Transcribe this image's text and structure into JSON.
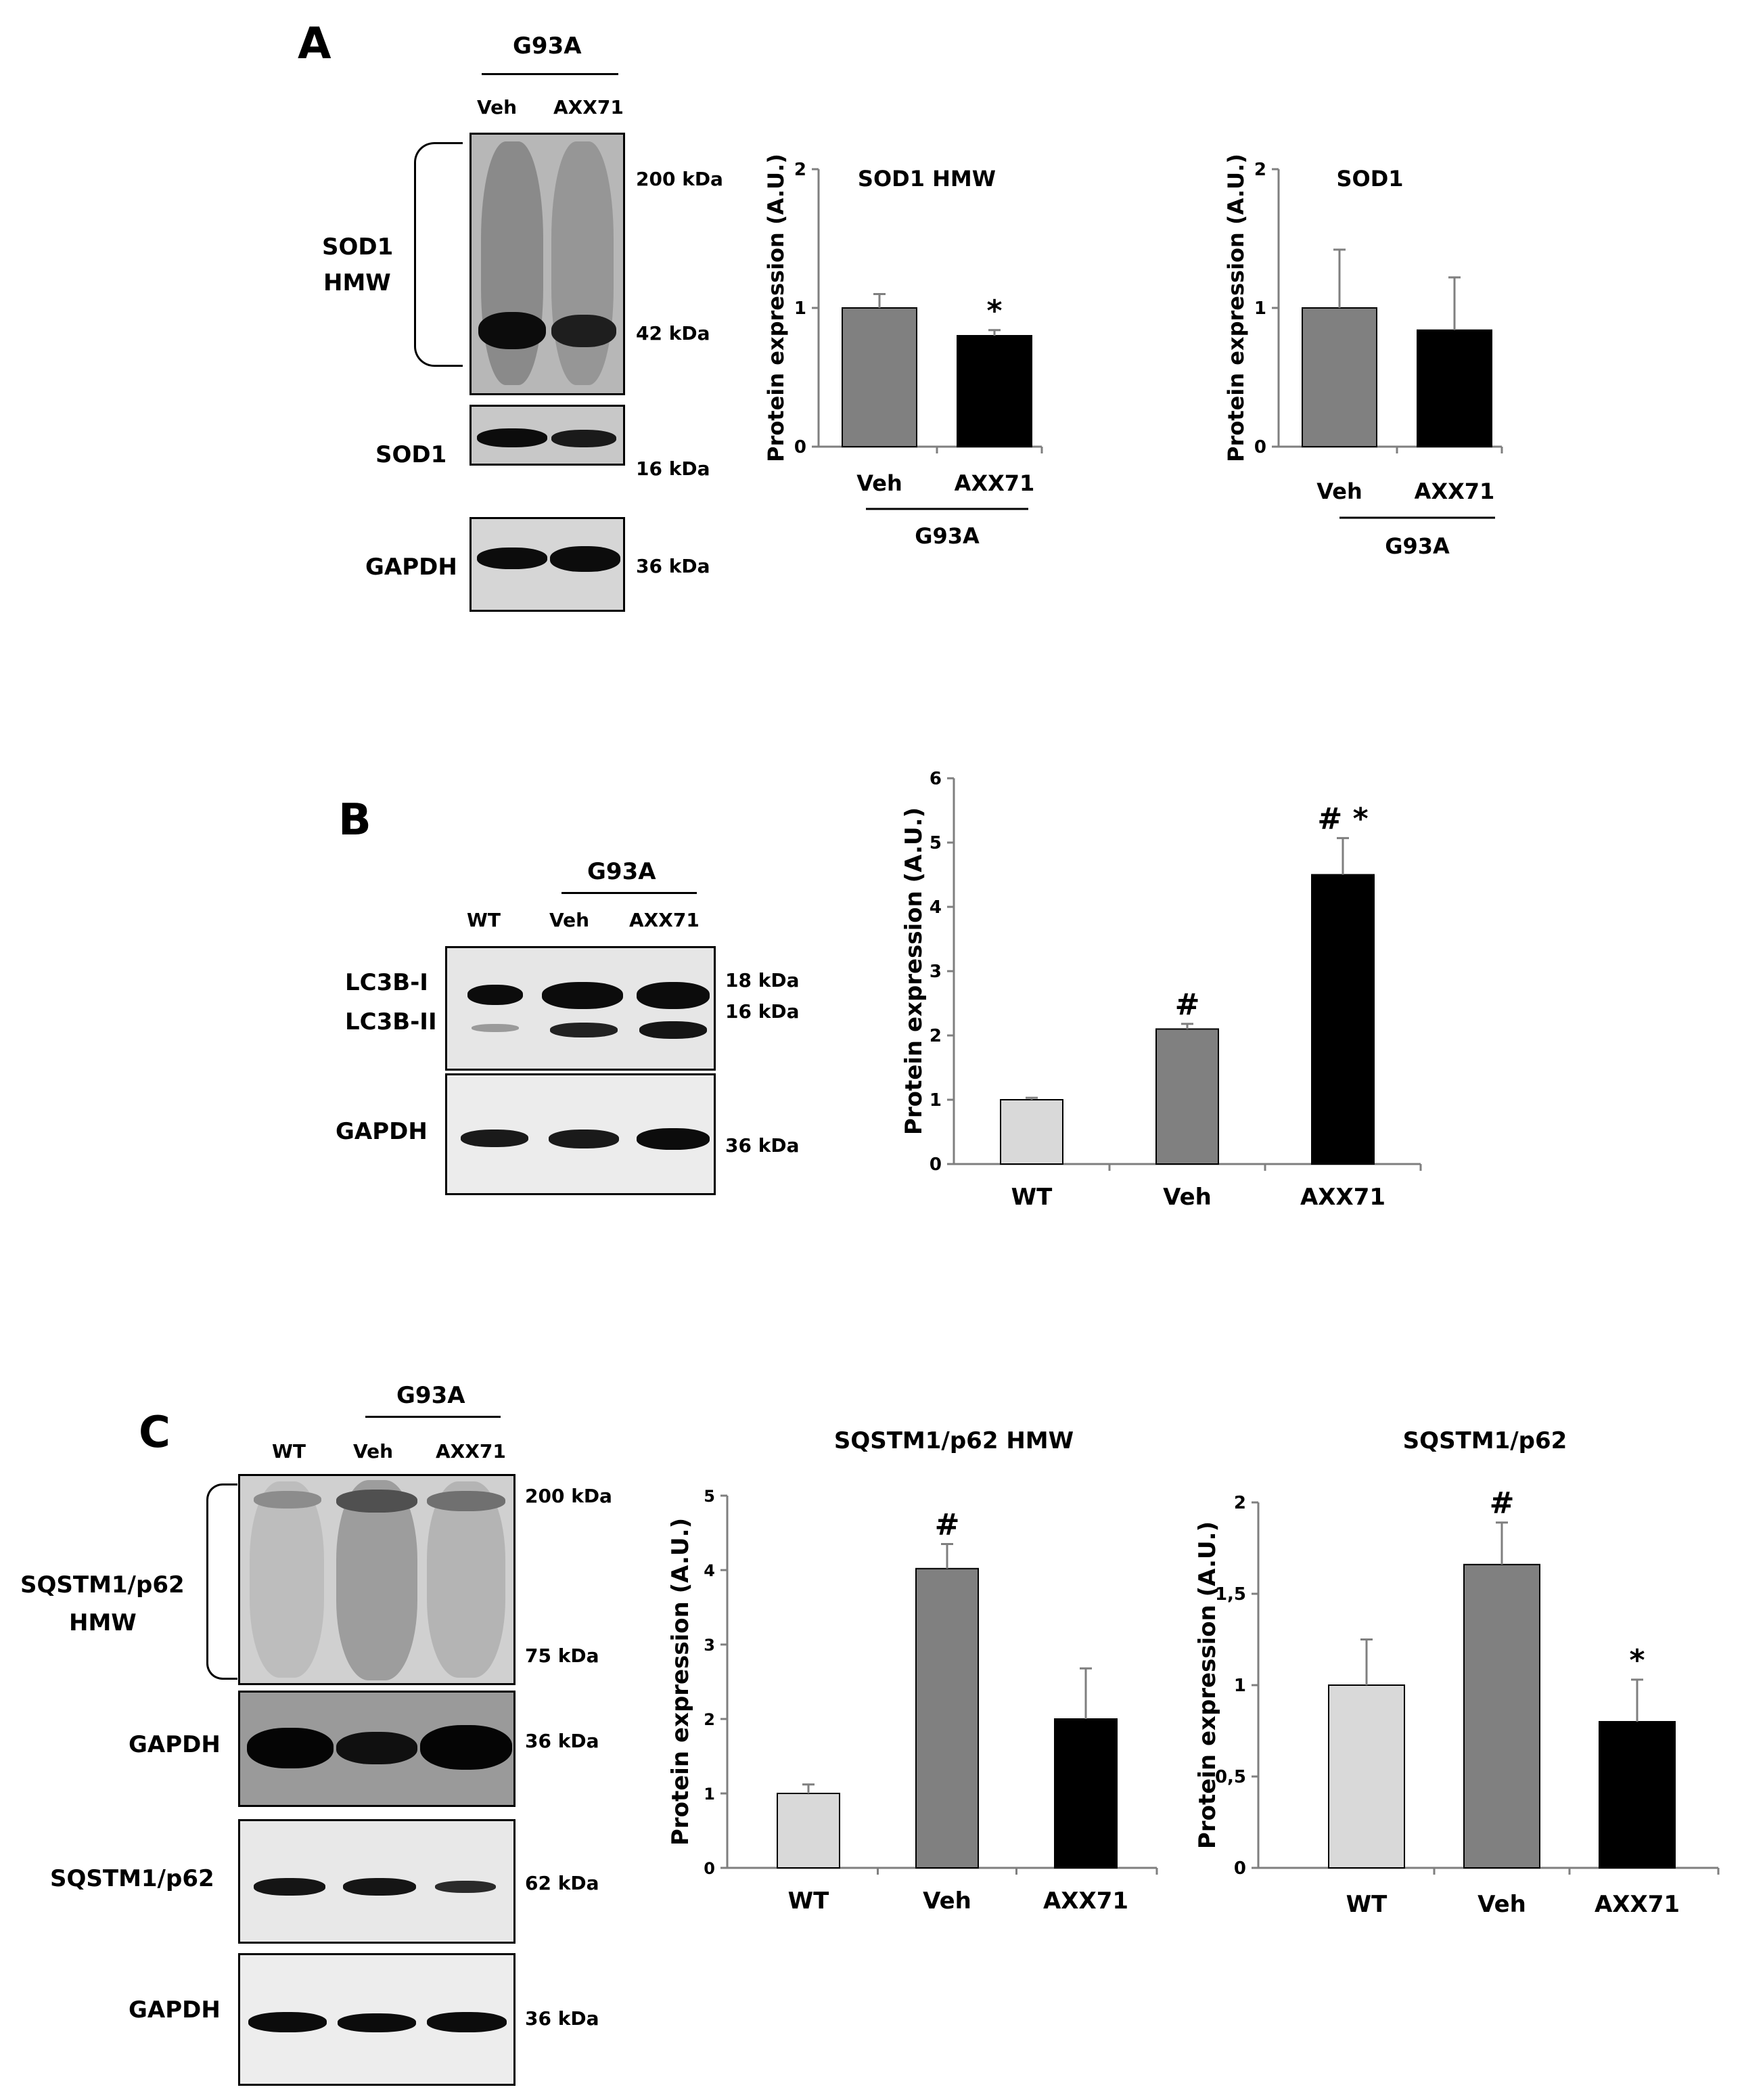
{
  "panel_a": {
    "letter": "A",
    "group": "G93A",
    "lanes": [
      "Veh",
      "AXX71"
    ],
    "blots": {
      "hmw": {
        "label_line1": "SOD1",
        "label_line2": "HMW",
        "marker_top": "200 kDa",
        "marker_bottom": "42 kDa"
      },
      "sod1": {
        "label": "SOD1",
        "marker": "16 kDa"
      },
      "gapdh": {
        "label": "GAPDH",
        "marker": "36 kDa"
      }
    }
  },
  "panel_b": {
    "letter": "B",
    "group": "G93A",
    "lanes": [
      "WT",
      "Veh",
      "AXX71"
    ],
    "blots": {
      "lc3": {
        "label_line1": "LC3B-I",
        "label_line2": "LC3B-II",
        "marker_top": "18 kDa",
        "marker_bottom": "16 kDa"
      },
      "gapdh": {
        "label": "GAPDH",
        "marker": "36 kDa"
      }
    }
  },
  "panel_c": {
    "letter": "C",
    "group": "G93A",
    "lanes": [
      "WT",
      "Veh",
      "AXX71"
    ],
    "blots": {
      "hmw": {
        "label_line1": "SQSTM1/p62",
        "label_line2": "HMW",
        "marker_top": "200 kDa",
        "marker_bottom": "75 kDa"
      },
      "gapdh1": {
        "label": "GAPDH",
        "marker": "36 kDa"
      },
      "p62": {
        "label": "SQSTM1/p62",
        "marker": "62 kDa"
      },
      "gapdh2": {
        "label": "GAPDH",
        "marker": "36 kDa"
      }
    }
  },
  "colors": {
    "wt": "#d9d9d9",
    "veh": "#808080",
    "axx71": "#000000",
    "axis": "#7f7f7f"
  },
  "chart_data": [
    {
      "id": "a1",
      "type": "bar",
      "title": "SOD1 HMW",
      "ylabel": "Protein expression (A.U.)",
      "categories": [
        "Veh",
        "AXX71"
      ],
      "values": [
        1.0,
        0.8
      ],
      "errors": [
        0.1,
        0.04
      ],
      "annotations": [
        "",
        "*"
      ],
      "ylim": [
        0,
        2
      ],
      "yticks": [
        0,
        1,
        2
      ],
      "ytick_labels": [
        "0",
        "1",
        "2"
      ],
      "group_label": "G93A",
      "grid": false
    },
    {
      "id": "a2",
      "type": "bar",
      "title": "SOD1",
      "ylabel": "Protein expression (A.U.)",
      "categories": [
        "Veh",
        "AXX71"
      ],
      "values": [
        1.0,
        0.84
      ],
      "errors": [
        0.42,
        0.38
      ],
      "annotations": [
        "",
        ""
      ],
      "ylim": [
        0,
        2
      ],
      "yticks": [
        0,
        1,
        2
      ],
      "ytick_labels": [
        "0",
        "1",
        "2"
      ],
      "group_label": "G93A",
      "grid": false
    },
    {
      "id": "b1",
      "type": "bar",
      "title": "",
      "ylabel": "Protein expression (A.U.)",
      "categories": [
        "WT",
        "Veh",
        "AXX71"
      ],
      "values": [
        1.0,
        2.1,
        4.5
      ],
      "errors": [
        0.03,
        0.08,
        0.57
      ],
      "annotations": [
        "",
        "#",
        "# *"
      ],
      "ylim": [
        0,
        6
      ],
      "yticks": [
        0,
        1,
        2,
        3,
        4,
        5,
        6
      ],
      "ytick_labels": [
        "0",
        "1",
        "2",
        "3",
        "4",
        "5",
        "6"
      ],
      "group_label": "",
      "grid": false
    },
    {
      "id": "c1",
      "type": "bar",
      "title": "SQSTM1/p62 HMW",
      "ylabel": "Protein expression (A.U.)",
      "categories": [
        "WT",
        "Veh",
        "AXX71"
      ],
      "values": [
        1.0,
        4.02,
        2.0
      ],
      "errors": [
        0.12,
        0.33,
        0.68
      ],
      "annotations": [
        "",
        "#",
        ""
      ],
      "ylim": [
        0,
        5
      ],
      "yticks": [
        0,
        1,
        2,
        3,
        4,
        5
      ],
      "ytick_labels": [
        "0",
        "1",
        "2",
        "3",
        "4",
        "5"
      ],
      "group_label": "",
      "grid": false
    },
    {
      "id": "c2",
      "type": "bar",
      "title": "SQSTM1/p62",
      "ylabel": "Protein expression (A.U.)",
      "categories": [
        "WT",
        "Veh",
        "AXX71"
      ],
      "values": [
        1.0,
        1.66,
        0.8
      ],
      "errors": [
        0.25,
        0.23,
        0.23
      ],
      "annotations": [
        "",
        "#",
        "*"
      ],
      "ylim": [
        0,
        2
      ],
      "yticks": [
        0,
        0.5,
        1,
        1.5,
        2
      ],
      "ytick_labels": [
        "0",
        "0,5",
        "1",
        "1,5",
        "2"
      ],
      "group_label": "",
      "grid": false
    }
  ]
}
